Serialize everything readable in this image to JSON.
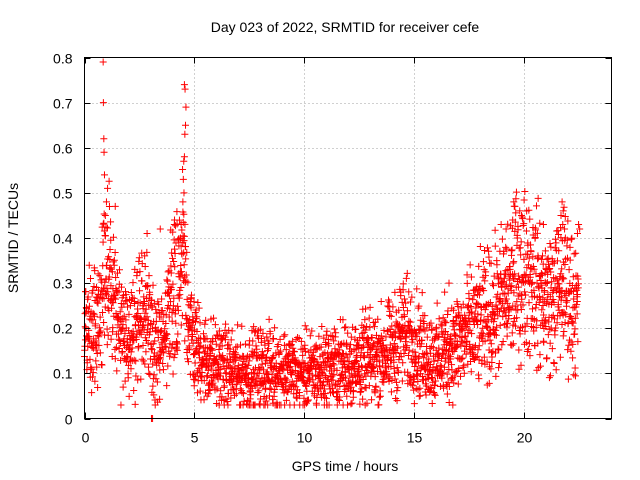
{
  "chart_data": {
    "type": "scatter",
    "title": "Day 023 of 2022, SRMTID for receiver cefe",
    "xlabel": "GPS time / hours",
    "ylabel": "SRMTID / TECUs",
    "xlim": [
      0,
      24
    ],
    "ylim": [
      0,
      0.8
    ],
    "xticks": [
      0,
      5,
      10,
      15,
      20
    ],
    "yticks": [
      0,
      0.1,
      0.2,
      0.3,
      0.4,
      0.5,
      0.6,
      0.7,
      0.8
    ],
    "xtick_labels": [
      "0",
      "5",
      "10",
      "15",
      "20"
    ],
    "ytick_labels": [
      "0",
      "0.1",
      "0.2",
      "0.3",
      "0.4",
      "0.5",
      "0.6",
      "0.7",
      "0.8"
    ],
    "grid": true,
    "marker": "+",
    "marker_color": "#ff0000",
    "x_step_hours": 0.0083,
    "series": [
      {
        "name": "SRMTID",
        "trend": [
          [
            0.0,
            0.21
          ],
          [
            0.4,
            0.19
          ],
          [
            0.75,
            0.23
          ],
          [
            0.9,
            0.33
          ],
          [
            1.1,
            0.36
          ],
          [
            1.3,
            0.26
          ],
          [
            1.6,
            0.19
          ],
          [
            2.0,
            0.18
          ],
          [
            2.4,
            0.21
          ],
          [
            2.8,
            0.24
          ],
          [
            3.2,
            0.16
          ],
          [
            3.6,
            0.15
          ],
          [
            3.9,
            0.27
          ],
          [
            4.2,
            0.31
          ],
          [
            4.5,
            0.35
          ],
          [
            4.7,
            0.24
          ],
          [
            5.0,
            0.16
          ],
          [
            5.5,
            0.13
          ],
          [
            6.0,
            0.12
          ],
          [
            7.0,
            0.1
          ],
          [
            8.0,
            0.11
          ],
          [
            9.0,
            0.11
          ],
          [
            10.0,
            0.1
          ],
          [
            11.0,
            0.11
          ],
          [
            12.0,
            0.12
          ],
          [
            13.0,
            0.13
          ],
          [
            14.0,
            0.15
          ],
          [
            14.5,
            0.19
          ],
          [
            15.0,
            0.17
          ],
          [
            15.5,
            0.14
          ],
          [
            16.0,
            0.13
          ],
          [
            17.0,
            0.17
          ],
          [
            18.0,
            0.21
          ],
          [
            18.7,
            0.24
          ],
          [
            19.3,
            0.28
          ],
          [
            19.8,
            0.32
          ],
          [
            20.3,
            0.33
          ],
          [
            20.8,
            0.27
          ],
          [
            21.3,
            0.26
          ],
          [
            21.8,
            0.3
          ],
          [
            22.3,
            0.26
          ],
          [
            22.5,
            0.23
          ]
        ],
        "peaks": [
          {
            "x": 0.85,
            "y": 0.79
          },
          {
            "x": 0.86,
            "y": 0.7
          },
          {
            "x": 0.88,
            "y": 0.62
          },
          {
            "x": 0.89,
            "y": 0.59
          },
          {
            "x": 0.91,
            "y": 0.54
          },
          {
            "x": 1.05,
            "y": 0.51
          },
          {
            "x": 1.0,
            "y": 0.48
          },
          {
            "x": 0.95,
            "y": 0.45
          },
          {
            "x": 1.4,
            "y": 0.47
          },
          {
            "x": 4.55,
            "y": 0.74
          },
          {
            "x": 4.58,
            "y": 0.73
          },
          {
            "x": 4.62,
            "y": 0.69
          },
          {
            "x": 4.6,
            "y": 0.65
          },
          {
            "x": 4.57,
            "y": 0.63
          },
          {
            "x": 4.55,
            "y": 0.58
          },
          {
            "x": 4.52,
            "y": 0.57
          },
          {
            "x": 4.5,
            "y": 0.53
          },
          {
            "x": 4.53,
            "y": 0.5
          },
          {
            "x": 4.48,
            "y": 0.48
          },
          {
            "x": 4.4,
            "y": 0.43
          },
          {
            "x": 4.1,
            "y": 0.44
          },
          {
            "x": 2.85,
            "y": 0.41
          },
          {
            "x": 3.45,
            "y": 0.42
          },
          {
            "x": 3.05,
            "y": 0.0
          },
          {
            "x": 3.1,
            "y": 0.0
          },
          {
            "x": 19.55,
            "y": 0.48
          },
          {
            "x": 19.6,
            "y": 0.47
          },
          {
            "x": 19.9,
            "y": 0.45
          },
          {
            "x": 19.5,
            "y": 0.44
          },
          {
            "x": 21.75,
            "y": 0.48
          },
          {
            "x": 21.8,
            "y": 0.46
          },
          {
            "x": 21.7,
            "y": 0.45
          },
          {
            "x": 21.78,
            "y": 0.43
          },
          {
            "x": 22.5,
            "y": 0.43
          },
          {
            "x": 22.55,
            "y": 0.42
          },
          {
            "x": 22.45,
            "y": 0.41
          },
          {
            "x": 14.4,
            "y": 0.28
          },
          {
            "x": 16.6,
            "y": 0.3
          },
          {
            "x": 16.4,
            "y": 0.28
          },
          {
            "x": 20.9,
            "y": 0.43
          },
          {
            "x": 21.9,
            "y": 0.4
          },
          {
            "x": 19.2,
            "y": 0.42
          }
        ]
      }
    ]
  }
}
